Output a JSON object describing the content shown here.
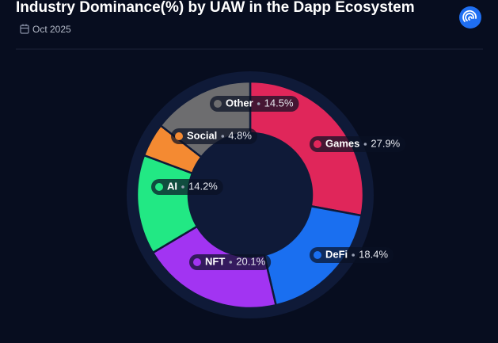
{
  "chart_data": {
    "type": "donut",
    "title": "Industry Dominance(%) by UAW in the Dapp Ecosystem",
    "subtitle": "Oct 2025",
    "categories": [
      "Games",
      "DeFi",
      "NFT",
      "AI",
      "Social",
      "Other"
    ],
    "values": [
      27.9,
      18.4,
      20.1,
      14.2,
      4.8,
      14.5
    ],
    "value_labels": [
      "27.9%",
      "18.4%",
      "20.1%",
      "14.2%",
      "4.8%",
      "14.5%"
    ],
    "colors": [
      "#e0265a",
      "#1a6ff0",
      "#a234f2",
      "#22e884",
      "#f48a32",
      "#6d6d6f"
    ]
  }
}
